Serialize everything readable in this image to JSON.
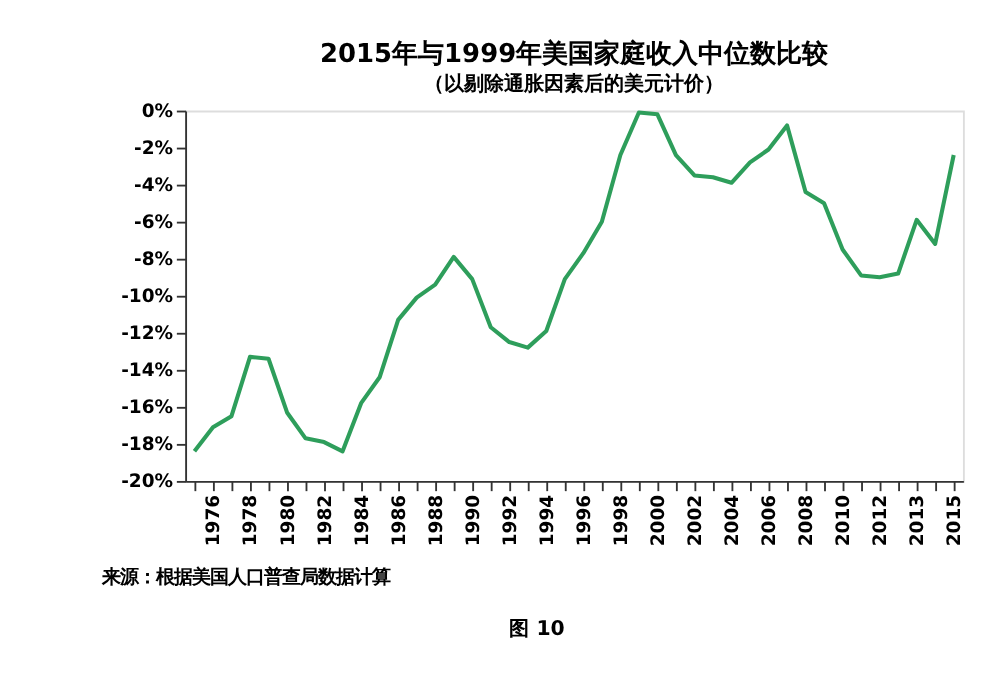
{
  "chart_data": {
    "type": "line",
    "title": "2015年与1999年美国家庭收入中位数比较",
    "subtitle": "（以剔除通胀因素后的美元计价）",
    "categories": [
      null,
      "1976",
      null,
      "1978",
      null,
      "1980",
      null,
      "1982",
      null,
      "1984",
      null,
      "1986",
      null,
      "1988",
      null,
      "1990",
      null,
      "1992",
      null,
      "1994",
      null,
      "1996",
      null,
      "1998",
      null,
      "2000",
      null,
      "2002",
      null,
      "2004",
      null,
      "2006",
      null,
      "2008",
      null,
      "2010",
      null,
      "2012",
      null,
      "2013",
      null,
      "2015"
    ],
    "series": [
      {
        "color": "#2e9e5b",
        "values": [
          -18.4,
          -17.1,
          -16.5,
          -13.3,
          -13.4,
          -16.3,
          -17.7,
          -17.9,
          -18.4,
          -15.8,
          -14.4,
          -11.3,
          -10.1,
          -9.4,
          -7.9,
          -9.1,
          -11.7,
          -12.5,
          -12.8,
          -11.9,
          -9.1,
          -7.7,
          -6.0,
          -2.4,
          -0.1,
          -0.2,
          -2.4,
          -3.5,
          -3.6,
          -3.9,
          -2.8,
          -2.1,
          -0.8,
          -4.4,
          -5.0,
          -7.5,
          -8.9,
          -9.0,
          -8.8,
          -5.9,
          -7.2,
          -2.4
        ]
      }
    ],
    "ylim": [
      -20,
      0
    ],
    "yticks": [
      {
        "value": -20,
        "label": "-20%"
      },
      {
        "value": -18,
        "label": "-18%"
      },
      {
        "value": -16,
        "label": "-16%"
      },
      {
        "value": -14,
        "label": "-14%"
      },
      {
        "value": -12,
        "label": "-12%"
      },
      {
        "value": -10,
        "label": "-10%"
      },
      {
        "value": -8,
        "label": "-8%"
      },
      {
        "value": -6,
        "label": "-6%"
      },
      {
        "value": -4,
        "label": "-4%"
      },
      {
        "value": -2,
        "label": "-2%"
      },
      {
        "value": 0,
        "label": "0%"
      }
    ],
    "grid": false,
    "legend": false,
    "marker": "none",
    "line_style": "solid",
    "annotations": [
      "来源：根据美国人口普查局数据计算",
      "图 10"
    ]
  }
}
